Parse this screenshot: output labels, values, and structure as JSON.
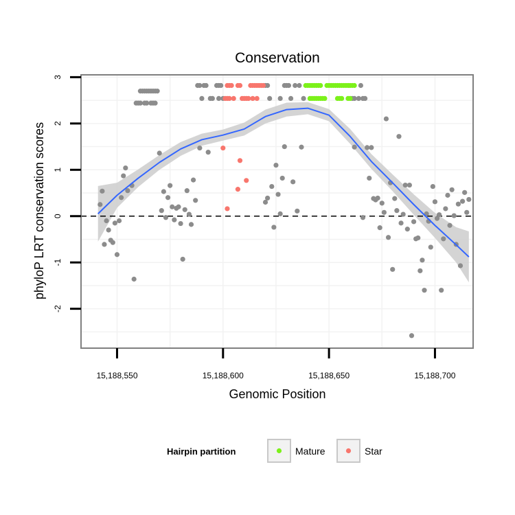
{
  "chart_data": {
    "type": "scatter",
    "title": "Conservation",
    "xlabel": "Genomic Position",
    "ylabel": "phyloP LRT conservation scores",
    "xlim": [
      15188533,
      15188718
    ],
    "ylim": [
      -2.85,
      3.05
    ],
    "x_ticks": [
      {
        "value": 15188550,
        "label": "15,188,550"
      },
      {
        "value": 15188600,
        "label": "15,188,600"
      },
      {
        "value": 15188650,
        "label": "15,188,650"
      },
      {
        "value": 15188700,
        "label": "15,188,700"
      }
    ],
    "y_ticks": [
      {
        "value": -2,
        "label": "-2"
      },
      {
        "value": -1,
        "label": "-1"
      },
      {
        "value": 0,
        "label": "0"
      },
      {
        "value": 1,
        "label": "1"
      },
      {
        "value": 2,
        "label": "2"
      },
      {
        "value": 3,
        "label": "3"
      }
    ],
    "reference_line": {
      "y": 0,
      "style": "dashed"
    },
    "legend": {
      "title": "Hairpin partition",
      "position": "bottom",
      "entries": [
        {
          "label": "Mature",
          "color": "#7cf11a"
        },
        {
          "label": "Star",
          "color": "#f8766d"
        }
      ]
    },
    "colors": {
      "other": "#8c8c8c",
      "Mature": "#7cf11a",
      "Star": "#f8766d",
      "smooth_line": "#3366ff",
      "ribbon": "#cccccc",
      "panel_border": "#7f7f7f",
      "grid": "#f2f2f2"
    },
    "series": [
      {
        "name": "Other",
        "points": [
          [
            15188542,
            0.25
          ],
          [
            15188543,
            0.54
          ],
          [
            15188544,
            -0.61
          ],
          [
            15188545,
            -0.1
          ],
          [
            15188546,
            -0.3
          ],
          [
            15188547,
            -0.52
          ],
          [
            15188548,
            -0.57
          ],
          [
            15188549,
            -0.15
          ],
          [
            15188550,
            -0.83
          ],
          [
            15188551,
            -0.1
          ],
          [
            15188552,
            0.4
          ],
          [
            15188553,
            0.87
          ],
          [
            15188554,
            1.04
          ],
          [
            15188555,
            0.55
          ],
          [
            15188557,
            0.66
          ],
          [
            15188558,
            -1.36
          ],
          [
            15188559,
            2.44
          ],
          [
            15188560,
            2.44
          ],
          [
            15188561,
            2.44
          ],
          [
            15188563,
            2.44
          ],
          [
            15188564,
            2.44
          ],
          [
            15188566,
            2.44
          ],
          [
            15188567,
            2.44
          ],
          [
            15188568,
            2.44
          ],
          [
            15188561,
            2.7
          ],
          [
            15188562,
            2.7
          ],
          [
            15188563,
            2.7
          ],
          [
            15188564,
            2.7
          ],
          [
            15188565,
            2.7
          ],
          [
            15188566,
            2.7
          ],
          [
            15188567,
            2.7
          ],
          [
            15188568,
            2.7
          ],
          [
            15188569,
            2.7
          ],
          [
            15188570,
            1.36
          ],
          [
            15188571,
            0.12
          ],
          [
            15188572,
            0.53
          ],
          [
            15188573,
            -0.03
          ],
          [
            15188574,
            0.4
          ],
          [
            15188575,
            0.66
          ],
          [
            15188576,
            0.2
          ],
          [
            15188577,
            -0.08
          ],
          [
            15188578,
            0.17
          ],
          [
            15188579,
            0.2
          ],
          [
            15188580,
            -0.16
          ],
          [
            15188581,
            -0.93
          ],
          [
            15188582,
            0.14
          ],
          [
            15188583,
            0.55
          ],
          [
            15188584,
            0.04
          ],
          [
            15188585,
            -0.18
          ],
          [
            15188586,
            0.78
          ],
          [
            15188587,
            0.34
          ],
          [
            15188589,
            1.47
          ],
          [
            15188593,
            1.38
          ],
          [
            15188588,
            2.82
          ],
          [
            15188589,
            2.82
          ],
          [
            15188591,
            2.82
          ],
          [
            15188592,
            2.82
          ],
          [
            15188597,
            2.82
          ],
          [
            15188598,
            2.82
          ],
          [
            15188599,
            2.82
          ],
          [
            15188590,
            2.54
          ],
          [
            15188594,
            2.54
          ],
          [
            15188595,
            2.54
          ],
          [
            15188598,
            2.54
          ],
          [
            15188600,
            2.54
          ],
          [
            15188620,
            2.82
          ],
          [
            15188621,
            2.82
          ],
          [
            15188629,
            2.82
          ],
          [
            15188630,
            2.82
          ],
          [
            15188631,
            2.82
          ],
          [
            15188634,
            2.82
          ],
          [
            15188636,
            2.82
          ],
          [
            15188665,
            2.82
          ],
          [
            15188622,
            2.54
          ],
          [
            15188627,
            2.54
          ],
          [
            15188632,
            2.54
          ],
          [
            15188638,
            2.54
          ],
          [
            15188661,
            2.54
          ],
          [
            15188662,
            2.54
          ],
          [
            15188664,
            2.54
          ],
          [
            15188666,
            2.54
          ],
          [
            15188667,
            2.54
          ],
          [
            15188620,
            0.3
          ],
          [
            15188621,
            0.39
          ],
          [
            15188623,
            0.64
          ],
          [
            15188624,
            -0.24
          ],
          [
            15188625,
            1.1
          ],
          [
            15188626,
            0.47
          ],
          [
            15188627,
            0.05
          ],
          [
            15188628,
            0.82
          ],
          [
            15188629,
            1.5
          ],
          [
            15188633,
            0.74
          ],
          [
            15188635,
            0.11
          ],
          [
            15188637,
            1.49
          ],
          [
            15188662,
            1.49
          ],
          [
            15188666,
            -0.03
          ],
          [
            15188668,
            1.48
          ],
          [
            15188669,
            0.82
          ],
          [
            15188670,
            1.48
          ],
          [
            15188671,
            0.38
          ],
          [
            15188672,
            0.35
          ],
          [
            15188673,
            0.39
          ],
          [
            15188674,
            -0.25
          ],
          [
            15188675,
            0.28
          ],
          [
            15188676,
            0.08
          ],
          [
            15188677,
            2.1
          ],
          [
            15188678,
            -0.46
          ],
          [
            15188679,
            0.72
          ],
          [
            15188680,
            -1.15
          ],
          [
            15188681,
            0.38
          ],
          [
            15188682,
            0.12
          ],
          [
            15188683,
            1.72
          ],
          [
            15188684,
            -0.15
          ],
          [
            15188685,
            0.04
          ],
          [
            15188686,
            0.67
          ],
          [
            15188687,
            -0.28
          ],
          [
            15188688,
            0.67
          ],
          [
            15188689,
            -2.58
          ],
          [
            15188690,
            -0.12
          ],
          [
            15188691,
            -0.49
          ],
          [
            15188692,
            -0.47
          ],
          [
            15188693,
            -1.18
          ],
          [
            15188694,
            -0.95
          ],
          [
            15188695,
            -1.6
          ],
          [
            15188696,
            0.05
          ],
          [
            15188697,
            -0.11
          ],
          [
            15188698,
            -0.67
          ],
          [
            15188699,
            0.64
          ],
          [
            15188700,
            0.31
          ],
          [
            15188701,
            -0.05
          ],
          [
            15188702,
            0.03
          ],
          [
            15188703,
            -1.6
          ],
          [
            15188704,
            -0.49
          ],
          [
            15188705,
            0.16
          ],
          [
            15188706,
            0.45
          ],
          [
            15188707,
            -0.2
          ],
          [
            15188708,
            0.57
          ],
          [
            15188709,
            0.01
          ],
          [
            15188710,
            -0.61
          ],
          [
            15188711,
            0.26
          ],
          [
            15188712,
            -1.07
          ],
          [
            15188713,
            0.32
          ],
          [
            15188714,
            0.51
          ],
          [
            15188715,
            0.08
          ],
          [
            15188716,
            0.36
          ]
        ]
      },
      {
        "name": "Mature",
        "points": [
          [
            15188639,
            2.82
          ],
          [
            15188640,
            2.82
          ],
          [
            15188641,
            2.82
          ],
          [
            15188642,
            2.82
          ],
          [
            15188643,
            2.82
          ],
          [
            15188644,
            2.82
          ],
          [
            15188645,
            2.82
          ],
          [
            15188646,
            2.82
          ],
          [
            15188649,
            2.82
          ],
          [
            15188650,
            2.82
          ],
          [
            15188651,
            2.82
          ],
          [
            15188652,
            2.82
          ],
          [
            15188653,
            2.82
          ],
          [
            15188654,
            2.82
          ],
          [
            15188655,
            2.82
          ],
          [
            15188656,
            2.82
          ],
          [
            15188657,
            2.82
          ],
          [
            15188658,
            2.82
          ],
          [
            15188659,
            2.82
          ],
          [
            15188660,
            2.82
          ],
          [
            15188661,
            2.82
          ],
          [
            15188662,
            2.82
          ],
          [
            15188641,
            2.54
          ],
          [
            15188642,
            2.54
          ],
          [
            15188643,
            2.54
          ],
          [
            15188644,
            2.54
          ],
          [
            15188645,
            2.54
          ],
          [
            15188646,
            2.54
          ],
          [
            15188647,
            2.54
          ],
          [
            15188648,
            2.54
          ],
          [
            15188654,
            2.54
          ],
          [
            15188655,
            2.54
          ],
          [
            15188656,
            2.54
          ],
          [
            15188659,
            2.54
          ],
          [
            15188660,
            2.54
          ]
        ]
      },
      {
        "name": "Star",
        "points": [
          [
            15188602,
            2.82
          ],
          [
            15188603,
            2.82
          ],
          [
            15188604,
            2.82
          ],
          [
            15188607,
            2.82
          ],
          [
            15188608,
            2.82
          ],
          [
            15188613,
            2.82
          ],
          [
            15188614,
            2.82
          ],
          [
            15188615,
            2.82
          ],
          [
            15188616,
            2.82
          ],
          [
            15188617,
            2.82
          ],
          [
            15188618,
            2.82
          ],
          [
            15188619,
            2.82
          ],
          [
            15188601,
            2.54
          ],
          [
            15188602,
            2.54
          ],
          [
            15188603,
            2.54
          ],
          [
            15188605,
            2.54
          ],
          [
            15188609,
            2.54
          ],
          [
            15188610,
            2.54
          ],
          [
            15188611,
            2.54
          ],
          [
            15188612,
            2.54
          ],
          [
            15188614,
            2.54
          ],
          [
            15188616,
            2.54
          ],
          [
            15188600,
            1.47
          ],
          [
            15188602,
            0.16
          ],
          [
            15188607,
            0.58
          ],
          [
            15188608,
            1.2
          ],
          [
            15188611,
            0.77
          ]
        ]
      }
    ],
    "smooth": {
      "x": [
        15188541,
        15188550,
        15188560,
        15188570,
        15188580,
        15188590,
        15188600,
        15188610,
        15188620,
        15188630,
        15188640,
        15188650,
        15188660,
        15188670,
        15188680,
        15188690,
        15188700,
        15188710,
        15188716
      ],
      "y": [
        0.05,
        0.45,
        0.82,
        1.16,
        1.45,
        1.65,
        1.75,
        1.88,
        2.15,
        2.3,
        2.33,
        2.18,
        1.72,
        1.18,
        0.72,
        0.25,
        -0.2,
        -0.62,
        -0.88
      ],
      "lower": [
        -0.55,
        0.18,
        0.63,
        1.0,
        1.3,
        1.52,
        1.63,
        1.74,
        2.0,
        2.15,
        2.2,
        2.05,
        1.56,
        1.02,
        0.54,
        0.03,
        -0.47,
        -1.0,
        -1.43
      ],
      "upper": [
        0.65,
        0.72,
        1.01,
        1.32,
        1.6,
        1.78,
        1.87,
        2.02,
        2.3,
        2.45,
        2.46,
        2.31,
        1.88,
        1.34,
        0.9,
        0.47,
        0.07,
        -0.24,
        -0.33
      ]
    }
  }
}
